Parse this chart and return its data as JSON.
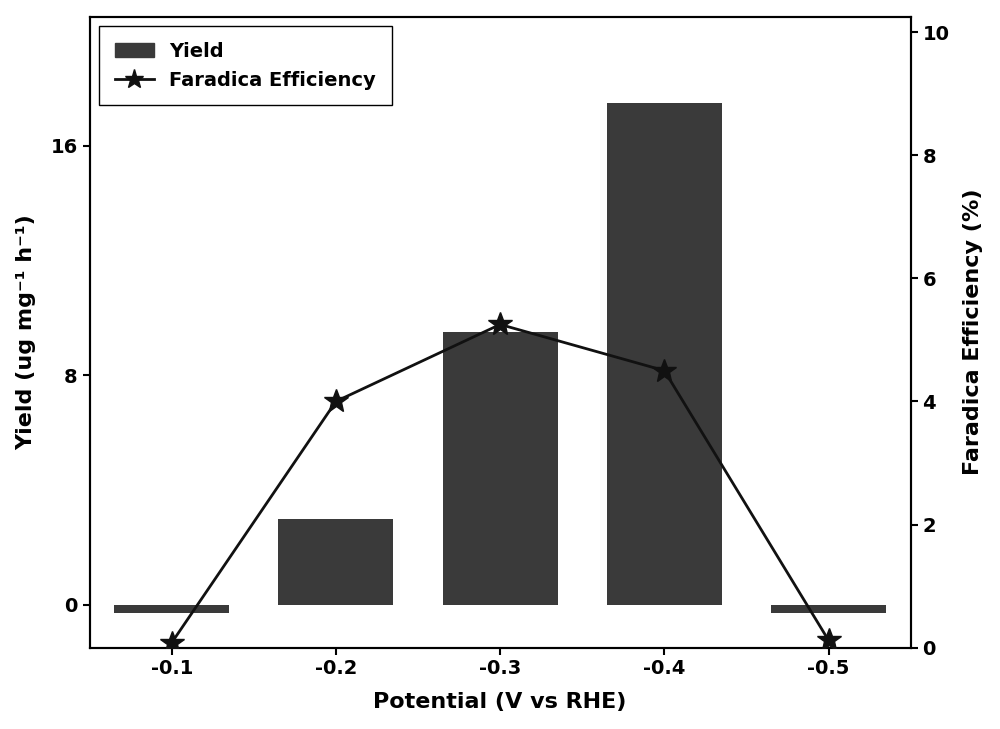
{
  "potentials": [
    -0.1,
    -0.2,
    -0.3,
    -0.4,
    -0.5
  ],
  "potential_labels": [
    "-0.1",
    "-0.2",
    "-0.3",
    "-0.4",
    "-0.5"
  ],
  "bar_values": [
    -0.3,
    3.0,
    9.5,
    17.5,
    -0.3
  ],
  "fe_values": [
    0.08,
    4.0,
    5.25,
    4.5,
    0.12
  ],
  "bar_color": "#3a3a3a",
  "line_color": "#111111",
  "bar_width": 0.07,
  "ylim_left": [
    -1.5,
    20.5
  ],
  "yticks_left": [
    0,
    8,
    16
  ],
  "ylim_right": [
    0,
    10.25
  ],
  "yticks_right": [
    0,
    2,
    4,
    6,
    8,
    10
  ],
  "xlabel": "Potential (V vs RHE)",
  "ylabel_left": "Yield (ug mg⁻¹ h⁻¹)",
  "ylabel_right": "Faradica Efficiency (%)",
  "legend_yield": "Yield",
  "legend_fe": "Faradica Efficiency",
  "label_fontsize": 16,
  "tick_fontsize": 14,
  "legend_fontsize": 14,
  "figure_width": 10.0,
  "figure_height": 7.29,
  "background_color": "#ffffff",
  "xlim_left": -0.05,
  "xlim_right": -0.55
}
